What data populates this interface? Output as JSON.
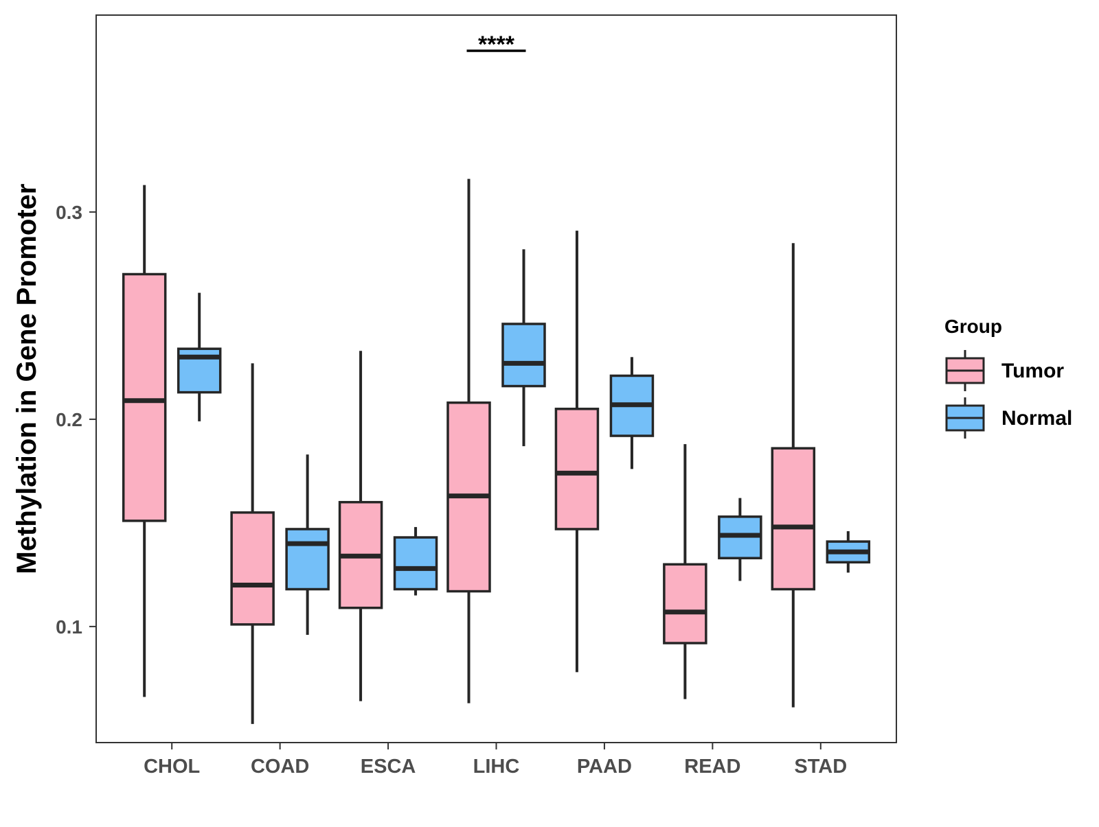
{
  "chart_data": {
    "type": "boxplot",
    "title": "",
    "xlabel": "",
    "ylabel": "Methylation in Gene Promoter",
    "ylim": [
      0.044,
      0.395
    ],
    "yticks": [
      0.1,
      0.2,
      0.3
    ],
    "ytick_labels": [
      "0.1",
      "0.2",
      "0.3"
    ],
    "grid": false,
    "legend_position": "right",
    "categories": [
      "CHOL",
      "COAD",
      "ESCA",
      "LIHC",
      "PAAD",
      "READ",
      "STAD"
    ],
    "legend": {
      "title": "Group",
      "items": [
        {
          "label": "Tumor",
          "color": "#FBB0C2"
        },
        {
          "label": "Normal",
          "color": "#74BFF8"
        }
      ]
    },
    "series": [
      {
        "name": "Tumor",
        "color": "#FBB0C2",
        "boxes": [
          {
            "min": 0.066,
            "q1": 0.151,
            "median": 0.209,
            "q3": 0.27,
            "max": 0.313
          },
          {
            "min": 0.053,
            "q1": 0.101,
            "median": 0.12,
            "q3": 0.155,
            "max": 0.227
          },
          {
            "min": 0.064,
            "q1": 0.109,
            "median": 0.134,
            "q3": 0.16,
            "max": 0.233
          },
          {
            "min": 0.063,
            "q1": 0.117,
            "median": 0.163,
            "q3": 0.208,
            "max": 0.316
          },
          {
            "min": 0.078,
            "q1": 0.147,
            "median": 0.174,
            "q3": 0.205,
            "max": 0.291
          },
          {
            "min": 0.065,
            "q1": 0.092,
            "median": 0.107,
            "q3": 0.13,
            "max": 0.188
          },
          {
            "min": 0.061,
            "q1": 0.118,
            "median": 0.148,
            "q3": 0.186,
            "max": 0.285
          }
        ]
      },
      {
        "name": "Normal",
        "color": "#74BFF8",
        "boxes": [
          {
            "min": 0.199,
            "q1": 0.213,
            "median": 0.23,
            "q3": 0.234,
            "max": 0.261
          },
          {
            "min": 0.096,
            "q1": 0.118,
            "median": 0.14,
            "q3": 0.147,
            "max": 0.183
          },
          {
            "min": 0.115,
            "q1": 0.118,
            "median": 0.128,
            "q3": 0.143,
            "max": 0.148
          },
          {
            "min": 0.187,
            "q1": 0.216,
            "median": 0.227,
            "q3": 0.246,
            "max": 0.282
          },
          {
            "min": 0.176,
            "q1": 0.192,
            "median": 0.207,
            "q3": 0.221,
            "max": 0.23
          },
          {
            "min": 0.122,
            "q1": 0.133,
            "median": 0.144,
            "q3": 0.153,
            "max": 0.162
          },
          {
            "min": 0.126,
            "q1": 0.131,
            "median": 0.136,
            "q3": 0.141,
            "max": 0.146
          }
        ]
      }
    ],
    "annotations": [
      {
        "category": "LIHC",
        "text": "****"
      }
    ]
  }
}
